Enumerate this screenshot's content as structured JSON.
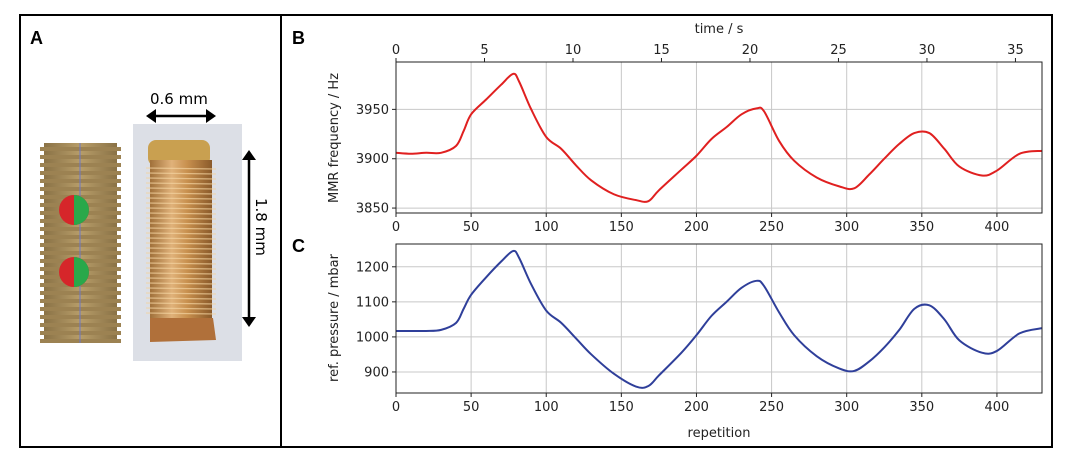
{
  "panels": {
    "a_label": "A",
    "b_label": "B",
    "c_label": "C"
  },
  "illustration": {
    "width_label": "0.6 mm",
    "height_label": "1.8 mm",
    "sphere_colors": [
      "#d6262a",
      "#29a84a"
    ],
    "screw_color": "#a89060"
  },
  "chart_data": [
    {
      "id": "B",
      "type": "line",
      "title": "",
      "xlabel": "",
      "ylabel": "MMR frequency / Hz",
      "top_axis_label": "time / s",
      "top_axis_ticks": [
        0,
        5,
        10,
        15,
        20,
        25,
        30,
        35
      ],
      "top_axis_range": [
        0,
        36.5
      ],
      "xlim": [
        0,
        430
      ],
      "ylim": [
        3845,
        3998
      ],
      "x_ticks": [
        0,
        50,
        100,
        150,
        200,
        250,
        300,
        350,
        400
      ],
      "y_ticks": [
        3850,
        3900,
        3950
      ],
      "grid": true,
      "color": "#e02020",
      "x": [
        0,
        10,
        20,
        30,
        40,
        45,
        50,
        60,
        70,
        78,
        82,
        90,
        100,
        110,
        120,
        130,
        145,
        160,
        168,
        175,
        190,
        200,
        210,
        220,
        230,
        240,
        245,
        255,
        265,
        280,
        295,
        305,
        315,
        325,
        335,
        345,
        355,
        365,
        375,
        390,
        400,
        415,
        430
      ],
      "y": [
        3906,
        3905,
        3906,
        3906,
        3913,
        3928,
        3945,
        3960,
        3975,
        3986,
        3978,
        3950,
        3922,
        3910,
        3893,
        3878,
        3864,
        3858,
        3857,
        3868,
        3889,
        3903,
        3920,
        3932,
        3945,
        3951,
        3948,
        3918,
        3898,
        3881,
        3872,
        3870,
        3884,
        3900,
        3915,
        3926,
        3926,
        3910,
        3892,
        3883,
        3888,
        3905,
        3908
      ]
    },
    {
      "id": "C",
      "type": "line",
      "title": "",
      "xlabel": "repetition",
      "ylabel": "ref. pressure / mbar",
      "xlim": [
        0,
        430
      ],
      "ylim": [
        840,
        1265
      ],
      "x_ticks": [
        0,
        50,
        100,
        150,
        200,
        250,
        300,
        350,
        400
      ],
      "y_ticks": [
        900,
        1000,
        1100,
        1200
      ],
      "grid": true,
      "color": "#2f3f9a",
      "x": [
        0,
        10,
        20,
        30,
        40,
        45,
        50,
        60,
        70,
        78,
        82,
        90,
        100,
        110,
        120,
        130,
        145,
        160,
        168,
        175,
        190,
        200,
        210,
        220,
        230,
        240,
        245,
        255,
        265,
        280,
        295,
        305,
        315,
        325,
        335,
        345,
        355,
        365,
        375,
        390,
        400,
        415,
        430
      ],
      "y": [
        1017,
        1017,
        1017,
        1020,
        1040,
        1080,
        1120,
        1170,
        1215,
        1245,
        1225,
        1150,
        1075,
        1040,
        995,
        950,
        895,
        858,
        860,
        890,
        955,
        1005,
        1060,
        1100,
        1140,
        1160,
        1145,
        1070,
        1005,
        945,
        910,
        903,
        930,
        970,
        1020,
        1080,
        1090,
        1050,
        990,
        955,
        960,
        1010,
        1025
      ]
    }
  ]
}
